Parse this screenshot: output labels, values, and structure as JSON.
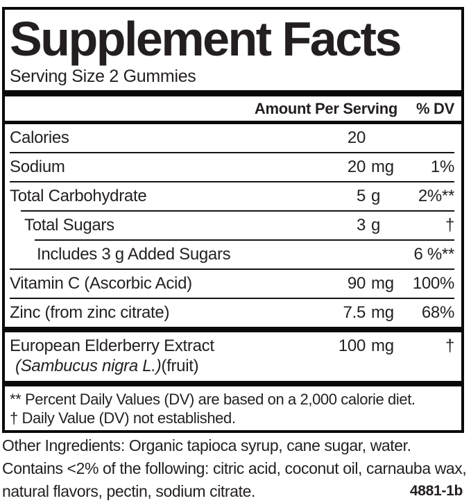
{
  "colors": {
    "text": "#231f20",
    "border": "#0a0a0a"
  },
  "label": {
    "title": "Supplement Facts",
    "serving_size": "Serving Size 2 Gummies",
    "header": {
      "amount_col": "Amount Per Serving",
      "dv_col": "% DV"
    },
    "rows": [
      {
        "name": "Calories",
        "amount": "20",
        "unit": "",
        "dv": ""
      },
      {
        "name": "Sodium",
        "amount": "20",
        "unit": "mg",
        "dv": "1%"
      },
      {
        "name": "Total Carbohydrate",
        "amount": "5",
        "unit": "g",
        "dv": "2%**"
      },
      {
        "name": "Total Sugars",
        "amount": "3",
        "unit": "g",
        "dv": "†"
      },
      {
        "name": "Includes 3 g Added Sugars",
        "amount": "",
        "unit": "",
        "dv": "6 %**"
      },
      {
        "name": "Vitamin C (Ascorbic Acid)",
        "amount": "90",
        "unit": "mg",
        "dv": "100%"
      },
      {
        "name": "Zinc (from zinc citrate)",
        "amount": "7.5",
        "unit": "mg",
        "dv": "68%"
      }
    ],
    "extract": {
      "name": "European Elderberry Extract",
      "latin": "(Sambucus nigra L.)",
      "part": "(fruit)",
      "amount": "100",
      "unit": "mg",
      "dv": "†"
    },
    "footnotes": {
      "percent": "** Percent Daily Values (DV) are based on a 2,000 calorie diet.",
      "dagger": "† Daily Value (DV) not established."
    }
  },
  "other_ingredients": {
    "line1": "Other Ingredients: Organic tapioca syrup, cane sugar, water.",
    "line2": "Contains <2% of the following: citric acid, coconut oil, carnauba wax, natural flavors, pectin, sodium citrate."
  },
  "code": "4881-1b"
}
